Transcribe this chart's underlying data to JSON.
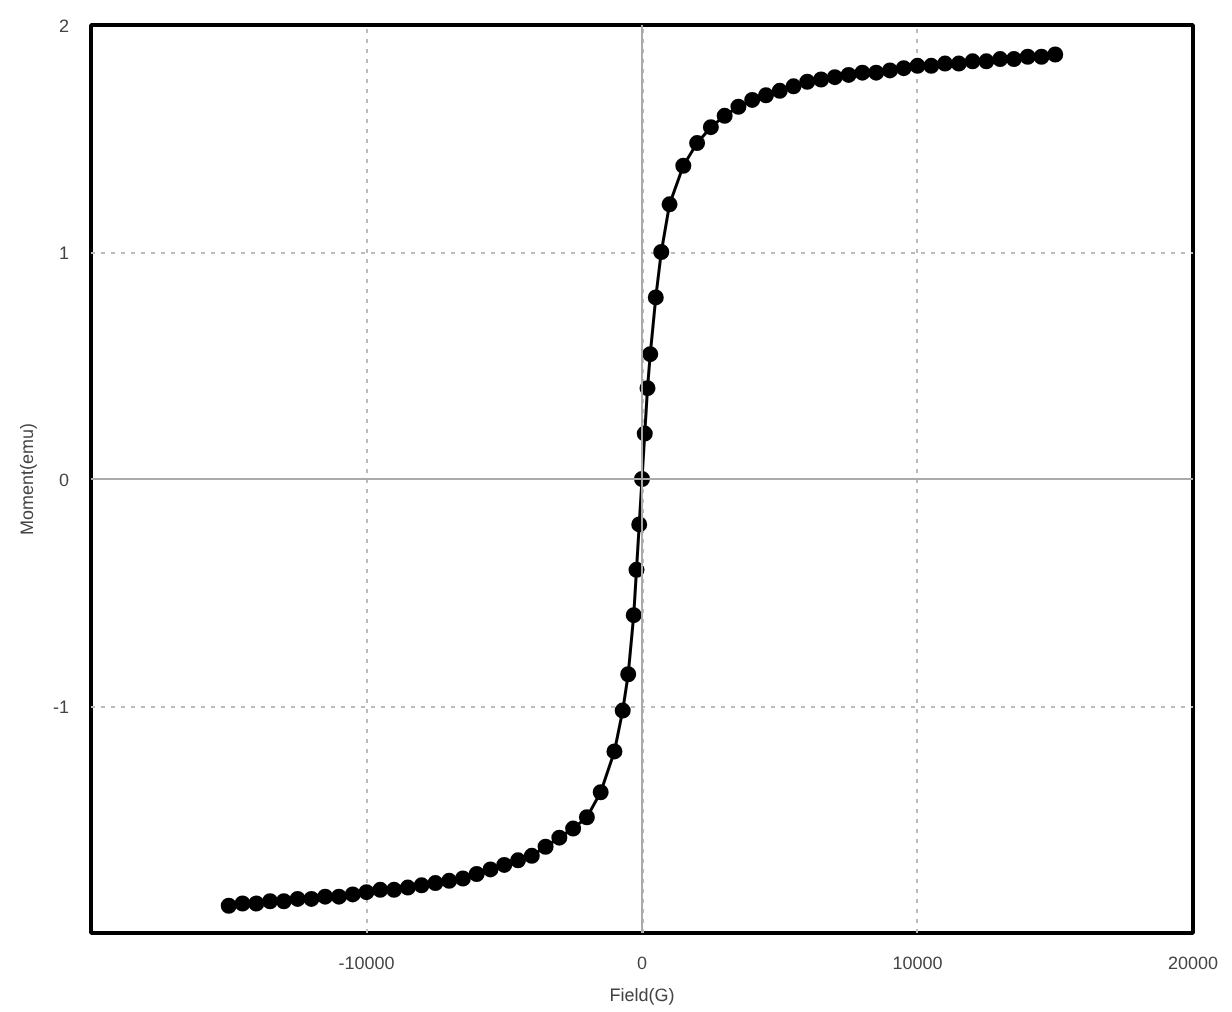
{
  "chart_data": {
    "type": "line",
    "xlabel": "Field(G)",
    "ylabel": "Moment(emu)",
    "xlim": [
      -20000,
      20000
    ],
    "ylim": [
      -2,
      2
    ],
    "xticks": [
      -10000,
      0,
      10000,
      20000
    ],
    "yticks": [
      {
        "value": -2,
        "label": null
      },
      -1,
      0,
      1,
      2
    ],
    "grid": true,
    "marker": "circle",
    "line_style": "solid",
    "series": [
      {
        "color": "#000000",
        "x": [
          -15000,
          -14500,
          -14000,
          -13500,
          -13000,
          -12500,
          -12000,
          -11500,
          -11000,
          -10500,
          -10000,
          -9500,
          -9000,
          -8500,
          -8000,
          -7500,
          -7000,
          -6500,
          -6000,
          -5500,
          -5000,
          -4500,
          -4000,
          -3500,
          -3000,
          -2500,
          -2000,
          -1500,
          -1000,
          -700,
          -500,
          -300,
          -200,
          -100,
          0,
          100,
          200,
          300,
          500,
          700,
          1000,
          1500,
          2000,
          2500,
          3000,
          3500,
          4000,
          4500,
          5000,
          5500,
          6000,
          6500,
          7000,
          7500,
          8000,
          8500,
          9000,
          9500,
          10000,
          10500,
          11000,
          11500,
          12000,
          12500,
          13000,
          13500,
          14000,
          14500,
          15000
        ],
        "values": [
          -1.88,
          -1.87,
          -1.87,
          -1.86,
          -1.86,
          -1.85,
          -1.85,
          -1.84,
          -1.84,
          -1.83,
          -1.82,
          -1.81,
          -1.81,
          -1.8,
          -1.79,
          -1.78,
          -1.77,
          -1.76,
          -1.74,
          -1.72,
          -1.7,
          -1.68,
          -1.66,
          -1.62,
          -1.58,
          -1.54,
          -1.49,
          -1.38,
          -1.2,
          -1.02,
          -0.86,
          -0.6,
          -0.4,
          -0.2,
          0,
          0.2,
          0.4,
          0.55,
          0.8,
          1.0,
          1.21,
          1.38,
          1.48,
          1.55,
          1.6,
          1.64,
          1.67,
          1.69,
          1.71,
          1.73,
          1.75,
          1.76,
          1.77,
          1.78,
          1.79,
          1.79,
          1.8,
          1.81,
          1.82,
          1.82,
          1.83,
          1.83,
          1.84,
          1.84,
          1.85,
          1.85,
          1.86,
          1.86,
          1.87
        ]
      }
    ]
  }
}
